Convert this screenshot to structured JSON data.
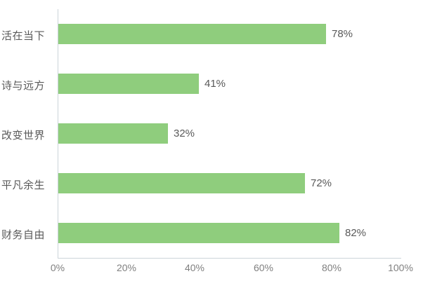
{
  "chart_data": {
    "type": "bar",
    "orientation": "horizontal",
    "title": "",
    "xlabel": "",
    "ylabel": "",
    "categories": [
      "活在当下",
      "诗与远方",
      "改变世界",
      "平凡余生",
      "财务自由"
    ],
    "values": [
      78,
      41,
      32,
      72,
      82
    ],
    "value_labels": [
      "78%",
      "41%",
      "32%",
      "72%",
      "82%"
    ],
    "x_ticks": [
      "0%",
      "20%",
      "40%",
      "60%",
      "80%",
      "100%"
    ],
    "xlim": [
      0,
      100
    ],
    "grid": false,
    "legend": false,
    "bar_color": "#8fcd7d",
    "axis_line_color": "#ccd4da",
    "category_label_color": "#595959",
    "value_label_color": "#595959",
    "tick_label_color": "#808080",
    "background_color": "#ffffff"
  }
}
